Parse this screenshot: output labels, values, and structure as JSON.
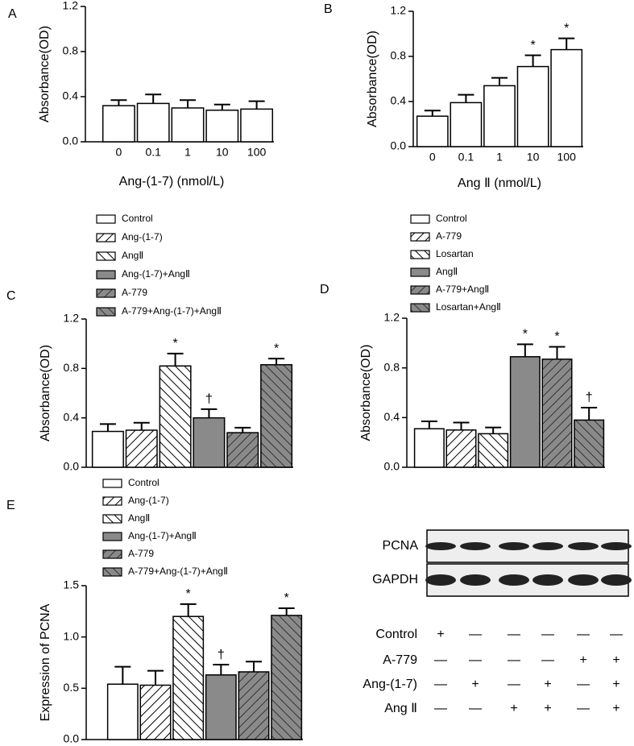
{
  "chart_data": [
    {
      "type": "bar",
      "panel": "A",
      "ylabel": "Absorbance(OD)",
      "xlabel": "Ang-(1-7) (nmol/L)",
      "categories": [
        "0",
        "0.1",
        "1",
        "10",
        "100"
      ],
      "values": [
        0.32,
        0.34,
        0.3,
        0.28,
        0.29
      ],
      "errors": [
        0.05,
        0.08,
        0.07,
        0.05,
        0.07
      ],
      "color": "#ffffff",
      "ylim": [
        0,
        1.2
      ],
      "yticks": [
        {
          "value": 0,
          "label": "0.0"
        },
        0.4,
        0.8,
        1.2
      ]
    },
    {
      "type": "bar",
      "panel": "B",
      "ylabel": "Absorbance(OD)",
      "xlabel": "Ang Ⅱ (nmol/L)",
      "categories": [
        "0",
        "0.1",
        "1",
        "10",
        "100"
      ],
      "values": [
        0.27,
        0.39,
        0.54,
        0.71,
        0.86
      ],
      "errors": [
        0.05,
        0.07,
        0.07,
        0.1,
        0.1
      ],
      "marks": [
        null,
        null,
        null,
        "*",
        "*"
      ],
      "color": "#ffffff",
      "ylim": [
        0,
        1.2
      ],
      "yticks": [
        {
          "value": 0,
          "label": "0.0"
        },
        0.4,
        0.8,
        1.2
      ]
    },
    {
      "type": "bar",
      "panel": "C",
      "ylabel": "Absorbance(OD)",
      "legend": true,
      "categories": [
        "Control",
        "Ang-(1-7)",
        "AngⅡ",
        "Ang-(1-7)+AngⅡ",
        "A-779",
        "A-779+Ang-(1-7)+AngⅡ"
      ],
      "values": [
        0.29,
        0.3,
        0.82,
        0.4,
        0.28,
        0.83
      ],
      "errors": [
        0.06,
        0.06,
        0.1,
        0.07,
        0.04,
        0.05
      ],
      "marks": [
        null,
        null,
        "*",
        "†",
        null,
        "*"
      ],
      "patterns": [
        "white",
        "hatch-right",
        "hatch-left",
        "gray",
        "gray-hatch-right",
        "gray-hatch-left"
      ],
      "ylim": [
        0,
        1.2
      ],
      "yticks": [
        {
          "value": 0,
          "label": "0.0"
        },
        0.4,
        0.8,
        1.2
      ]
    },
    {
      "type": "bar",
      "panel": "D",
      "ylabel": "Absorbance(OD)",
      "legend": true,
      "categories": [
        "Control",
        "A-779",
        "Losartan",
        "AngⅡ",
        "A-779+AngⅡ",
        "Losartan+AngⅡ"
      ],
      "values": [
        0.31,
        0.3,
        0.27,
        0.89,
        0.87,
        0.38
      ],
      "errors": [
        0.06,
        0.06,
        0.05,
        0.1,
        0.1,
        0.1
      ],
      "marks": [
        null,
        null,
        null,
        "*",
        "*",
        "†"
      ],
      "patterns": [
        "white",
        "hatch-right",
        "hatch-left",
        "gray",
        "gray-hatch-right",
        "gray-hatch-left"
      ],
      "ylim": [
        0,
        1.2
      ],
      "yticks": [
        {
          "value": 0,
          "label": "0.0"
        },
        0.4,
        0.8,
        1.2
      ]
    },
    {
      "type": "bar",
      "panel": "E",
      "ylabel": "Expression of PCNA",
      "legend": true,
      "categories": [
        "Control",
        "Ang-(1-7)",
        "AngⅡ",
        "Ang-(1-7)+AngⅡ",
        "A-779",
        "A-779+Ang-(1-7)+AngⅡ"
      ],
      "values": [
        0.54,
        0.53,
        1.2,
        0.63,
        0.66,
        1.21
      ],
      "errors": [
        0.17,
        0.14,
        0.12,
        0.1,
        0.1,
        0.07
      ],
      "marks": [
        null,
        null,
        "*",
        "†",
        null,
        "*"
      ],
      "patterns": [
        "white",
        "hatch-right",
        "hatch-left",
        "gray",
        "gray-hatch-right",
        "gray-hatch-left"
      ],
      "ylim": [
        0,
        1.5
      ],
      "yticks": [
        {
          "value": 0,
          "label": "0.0"
        },
        0.5,
        {
          "value": 1,
          "label": "1.0"
        },
        1.5
      ]
    }
  ],
  "blot": {
    "bands": [
      "PCNA",
      "GAPDH"
    ],
    "rows": [
      {
        "label": "Control",
        "signs": [
          "+",
          "—",
          "—",
          "—",
          "—",
          "—"
        ]
      },
      {
        "label": "A-779",
        "signs": [
          "—",
          "—",
          "—",
          "—",
          "+",
          "+"
        ]
      },
      {
        "label": "Ang-(1-7)",
        "signs": [
          "—",
          "+",
          "—",
          "+",
          "—",
          "+"
        ]
      },
      {
        "label": "Ang Ⅱ",
        "signs": [
          "—",
          "—",
          "+",
          "+",
          "—",
          "+"
        ]
      }
    ]
  }
}
